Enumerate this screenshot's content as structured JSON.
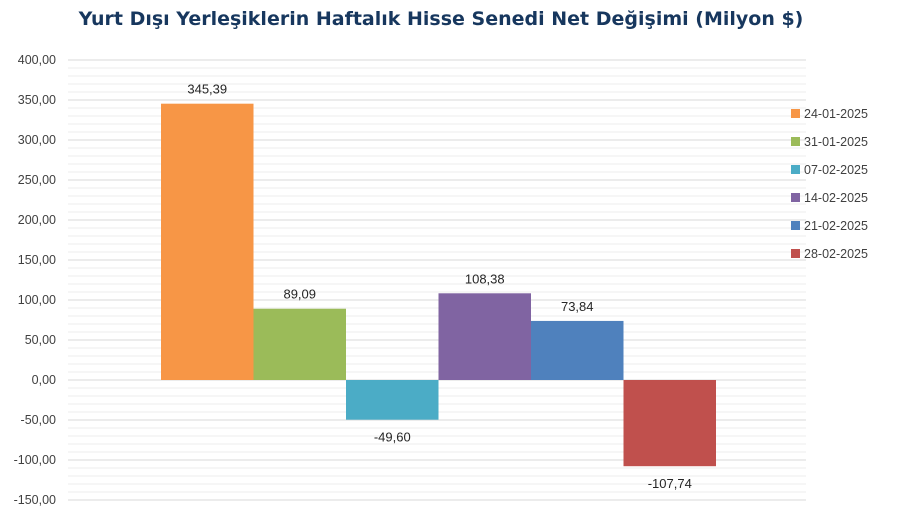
{
  "chart_data": {
    "type": "bar",
    "title": "Yurt Dışı Yerleşiklerin Haftalık Hisse Senedi Net Değişimi (Milyon $)",
    "series": [
      {
        "name": "24-01-2025",
        "value": 345.39,
        "label": "345,39",
        "color": "#f79646"
      },
      {
        "name": "31-01-2025",
        "value": 89.09,
        "label": "89,09",
        "color": "#9bbb59"
      },
      {
        "name": "07-02-2025",
        "value": -49.6,
        "label": "-49,60",
        "color": "#4bacc6"
      },
      {
        "name": "14-02-2025",
        "value": 108.38,
        "label": "108,38",
        "color": "#8064a2"
      },
      {
        "name": "21-02-2025",
        "value": 73.84,
        "label": "73,84",
        "color": "#4f81bd"
      },
      {
        "name": "28-02-2025",
        "value": -107.74,
        "label": "-107,74",
        "color": "#c0504d"
      }
    ],
    "ylim": [
      -150,
      400
    ],
    "yticks": [
      "400,00",
      "350,00",
      "300,00",
      "250,00",
      "200,00",
      "150,00",
      "100,00",
      "50,00",
      "0,00",
      "-50,00",
      "-100,00",
      "-150,00"
    ],
    "ytick_values": [
      400,
      350,
      300,
      250,
      200,
      150,
      100,
      50,
      0,
      -50,
      -100,
      -150
    ],
    "grid": true,
    "legend_position": "right"
  }
}
